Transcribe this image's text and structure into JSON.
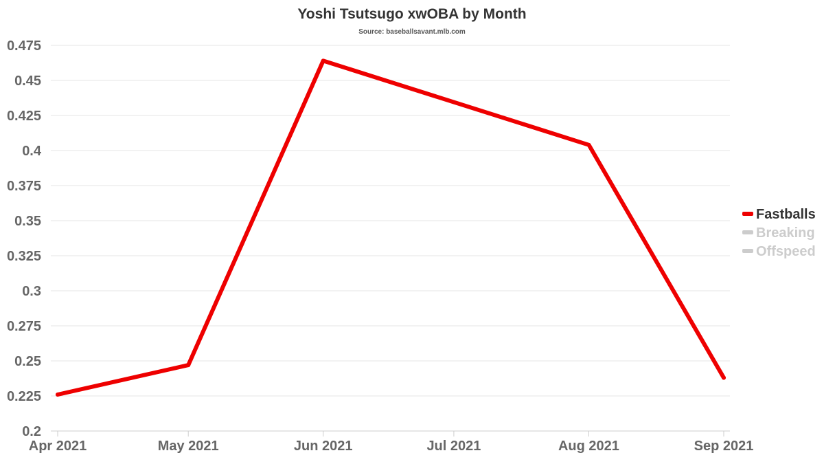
{
  "chart_data": {
    "type": "line",
    "title": "Yoshi Tsutsugo xwOBA by Month",
    "subtitle": "Source: baseballsavant.mlb.com",
    "xlabel": "",
    "ylabel": "",
    "categories": [
      "Apr 2021",
      "May 2021",
      "Jun 2021",
      "Jul 2021",
      "Aug 2021",
      "Sep 2021"
    ],
    "x_dates": [
      "2021-04-01",
      "2021-05-01",
      "2021-06-01",
      "2021-07-01",
      "2021-08-01",
      "2021-09-01"
    ],
    "ylim": [
      0.2,
      0.475
    ],
    "yticks": [
      "0.2",
      "0.225",
      "0.25",
      "0.275",
      "0.3",
      "0.325",
      "0.35",
      "0.375",
      "0.4",
      "0.425",
      "0.45",
      "0.475"
    ],
    "grid": true,
    "legend_position": "right",
    "series": [
      {
        "name": "Fastballs",
        "color": "#ee0000",
        "visible": true,
        "points": [
          {
            "x": "2021-04-01",
            "y": 0.226
          },
          {
            "x": "2021-05-01",
            "y": 0.247
          },
          {
            "x": "2021-06-01",
            "y": 0.464
          },
          {
            "x": "2021-08-01",
            "y": 0.404
          },
          {
            "x": "2021-09-01",
            "y": 0.238
          }
        ]
      },
      {
        "name": "Breaking",
        "color": "#cccccc",
        "visible": false,
        "points": []
      },
      {
        "name": "Offspeed",
        "color": "#cccccc",
        "visible": false,
        "points": []
      }
    ]
  }
}
